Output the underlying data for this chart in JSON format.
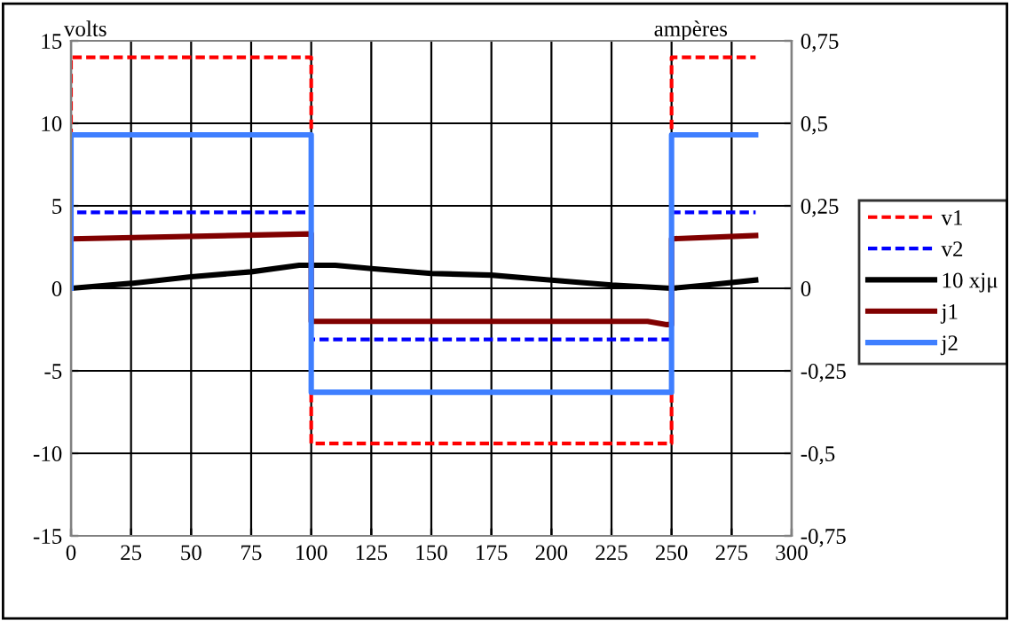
{
  "chart_data": {
    "type": "line",
    "ylabel": "volts",
    "y2label": "ampères",
    "xlim": [
      0,
      300
    ],
    "xticks": [
      0,
      25,
      50,
      75,
      100,
      125,
      150,
      175,
      200,
      225,
      250,
      275,
      300
    ],
    "ylim": [
      -15,
      15
    ],
    "yticks": [
      -15,
      -10,
      -5,
      0,
      5,
      10,
      15
    ],
    "y2lim": [
      -0.75,
      0.75
    ],
    "y2ticks": [
      {
        "value": -0.75,
        "label": "-0,75"
      },
      {
        "value": -0.5,
        "label": "-0,5"
      },
      {
        "value": -0.25,
        "label": "-0,25"
      },
      0,
      {
        "value": 0.25,
        "label": "0,25"
      },
      {
        "value": 0.5,
        "label": "0,5"
      },
      {
        "value": 0.75,
        "label": "0,75"
      }
    ],
    "grid": true,
    "legend": "right",
    "marker": "none",
    "series": [
      {
        "name": "v1",
        "color": "#ff0000",
        "line_style": "dashed",
        "x": [
          0,
          0,
          100,
          100,
          250,
          250,
          285
        ],
        "values": [
          0,
          14,
          14,
          -9.4,
          -9.4,
          14,
          14
        ]
      },
      {
        "name": "v2",
        "color": "#0000ff",
        "line_style": "dashed",
        "x": [
          0,
          0,
          100,
          100,
          250,
          250,
          285
        ],
        "values": [
          0,
          4.6,
          4.6,
          -3.1,
          -3.1,
          4.6,
          4.6
        ]
      },
      {
        "name": "10 xjμ",
        "color": "#000000",
        "line_style": "solid",
        "axis": "y2",
        "x": [
          0,
          25,
          50,
          75,
          95,
          110,
          125,
          150,
          175,
          200,
          225,
          250,
          265,
          285
        ],
        "values": [
          0,
          0.015,
          0.035,
          0.05,
          0.07,
          0.07,
          0.06,
          0.045,
          0.04,
          0.025,
          0.01,
          0,
          0.01,
          0.025
        ]
      },
      {
        "name": "j1",
        "color": "#800000",
        "line_style": "solid",
        "axis": "y2",
        "x": [
          0,
          100,
          100,
          240,
          248,
          250,
          250,
          285
        ],
        "values": [
          0.15,
          0.165,
          -0.1,
          -0.1,
          -0.11,
          -0.11,
          0.15,
          0.16
        ]
      },
      {
        "name": "j2",
        "color": "#3f7fff",
        "line_style": "solid",
        "axis": "y2",
        "x": [
          0,
          0,
          100,
          100,
          250,
          250,
          285
        ],
        "values": [
          0,
          0.465,
          0.465,
          -0.315,
          -0.315,
          0.465,
          0.465
        ]
      }
    ]
  }
}
